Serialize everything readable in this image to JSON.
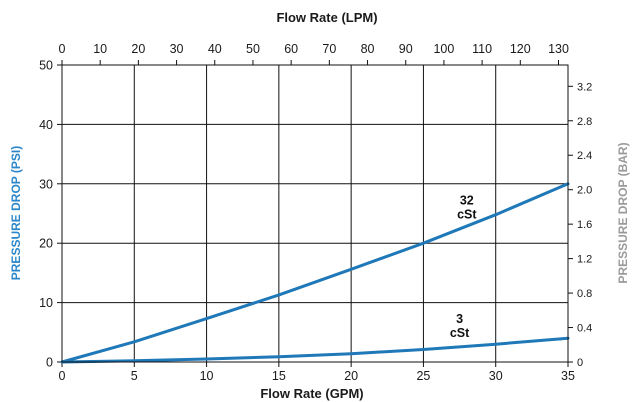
{
  "chart_data": {
    "type": "line",
    "top_axis_label": "Flow Rate (LPM)",
    "xlabel": "Flow Rate (GPM)",
    "ylabel": "PRESSURE DROP (PSI)",
    "y2label": "PRESSURE DROP (BAR)",
    "xlim": [
      0,
      35
    ],
    "ylim": [
      0,
      50
    ],
    "x_ticks": [
      0,
      5,
      10,
      15,
      20,
      25,
      30,
      35
    ],
    "y_ticks": [
      0,
      10,
      20,
      30,
      40,
      50
    ],
    "top_ticks": [
      0,
      10,
      20,
      30,
      40,
      50,
      60,
      70,
      80,
      90,
      100,
      110,
      120,
      130
    ],
    "top_tick_gpm_per_lpm": 0.264172,
    "right_ticks": [
      "0",
      "0.4",
      "0.8",
      "1.2",
      "1.6",
      "2.0",
      "2.4",
      "2.8",
      "3.2"
    ],
    "right_tick_psi_per_bar": 14.5038,
    "grid": true,
    "series": [
      {
        "name": "32 cSt",
        "label_lines": [
          "32",
          "cSt"
        ],
        "label_at": [
          28,
          26.5
        ],
        "x": [
          0,
          5,
          10,
          15,
          20,
          25,
          30,
          35
        ],
        "y": [
          0,
          3.4,
          7.3,
          11.3,
          15.6,
          20.0,
          24.8,
          30.0
        ]
      },
      {
        "name": "3 cSt",
        "label_lines": [
          "3",
          "cSt"
        ],
        "label_at": [
          27.5,
          6.6
        ],
        "x": [
          0,
          5,
          10,
          15,
          20,
          25,
          30,
          35
        ],
        "y": [
          0,
          0.2,
          0.5,
          0.9,
          1.4,
          2.1,
          3.0,
          4.0
        ]
      }
    ],
    "colors": {
      "curve": "#1f78b8",
      "left_title": "#2a86c8",
      "right_title": "#9a9a9a",
      "grid": "#111111"
    }
  }
}
